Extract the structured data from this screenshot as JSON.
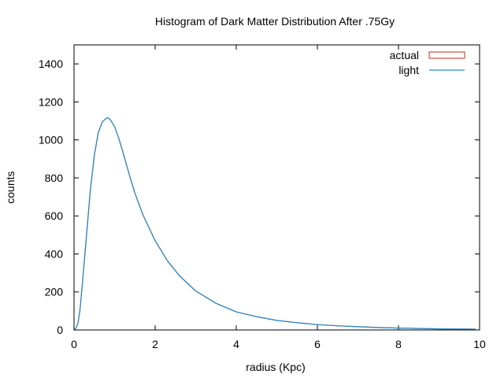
{
  "chart_data": {
    "type": "line",
    "title": "Histogram of Dark Matter Distribution After .75Gy",
    "xlabel": "radius (Kpc)",
    "ylabel": "counts",
    "xlim": [
      0,
      10
    ],
    "ylim": [
      0,
      1500
    ],
    "xticks": [
      "0",
      "2",
      "4",
      "6",
      "8",
      "10"
    ],
    "yticks": [
      "0",
      "200",
      "400",
      "600",
      "800",
      "1000",
      "1200",
      "1400"
    ],
    "grid": false,
    "legend_position": "top-right",
    "legend": [
      {
        "name": "actual",
        "style": "box",
        "color": "#cc2222"
      },
      {
        "name": "light",
        "style": "line",
        "color": "#1f8fcf"
      }
    ],
    "series": [
      {
        "name": "actual",
        "color": "#cc2222",
        "x": [
          0.0,
          0.05,
          0.1,
          0.15,
          0.2,
          0.3,
          0.4,
          0.5,
          0.6,
          0.7,
          0.8,
          0.85,
          0.9,
          1.0,
          1.1,
          1.2,
          1.3,
          1.4,
          1.5,
          1.7,
          2.0,
          2.3,
          2.6,
          3.0,
          3.5,
          4.0,
          4.5,
          5.0,
          5.5,
          6.0,
          6.5,
          7.0,
          7.5,
          8.0,
          8.5,
          9.0,
          9.5,
          9.9
        ],
        "y": [
          0,
          10,
          40,
          110,
          230,
          480,
          730,
          920,
          1040,
          1095,
          1115,
          1115,
          1105,
          1070,
          1010,
          940,
          865,
          790,
          720,
          605,
          470,
          365,
          285,
          205,
          140,
          95,
          70,
          50,
          38,
          28,
          22,
          17,
          13,
          10,
          8,
          6,
          5,
          4
        ]
      },
      {
        "name": "light",
        "color": "#1f8fcf",
        "x": [
          0.0,
          0.05,
          0.1,
          0.15,
          0.2,
          0.3,
          0.4,
          0.5,
          0.6,
          0.7,
          0.8,
          0.85,
          0.9,
          1.0,
          1.1,
          1.2,
          1.3,
          1.4,
          1.5,
          1.7,
          2.0,
          2.3,
          2.6,
          3.0,
          3.5,
          4.0,
          4.5,
          5.0,
          5.5,
          6.0,
          6.5,
          7.0,
          7.5,
          8.0,
          8.5,
          9.0,
          9.5,
          9.9
        ],
        "y": [
          0,
          10,
          40,
          110,
          230,
          480,
          730,
          920,
          1040,
          1095,
          1115,
          1115,
          1105,
          1070,
          1010,
          940,
          865,
          790,
          720,
          605,
          470,
          365,
          285,
          205,
          140,
          95,
          70,
          50,
          38,
          28,
          22,
          17,
          13,
          10,
          8,
          6,
          5,
          4
        ]
      }
    ]
  }
}
